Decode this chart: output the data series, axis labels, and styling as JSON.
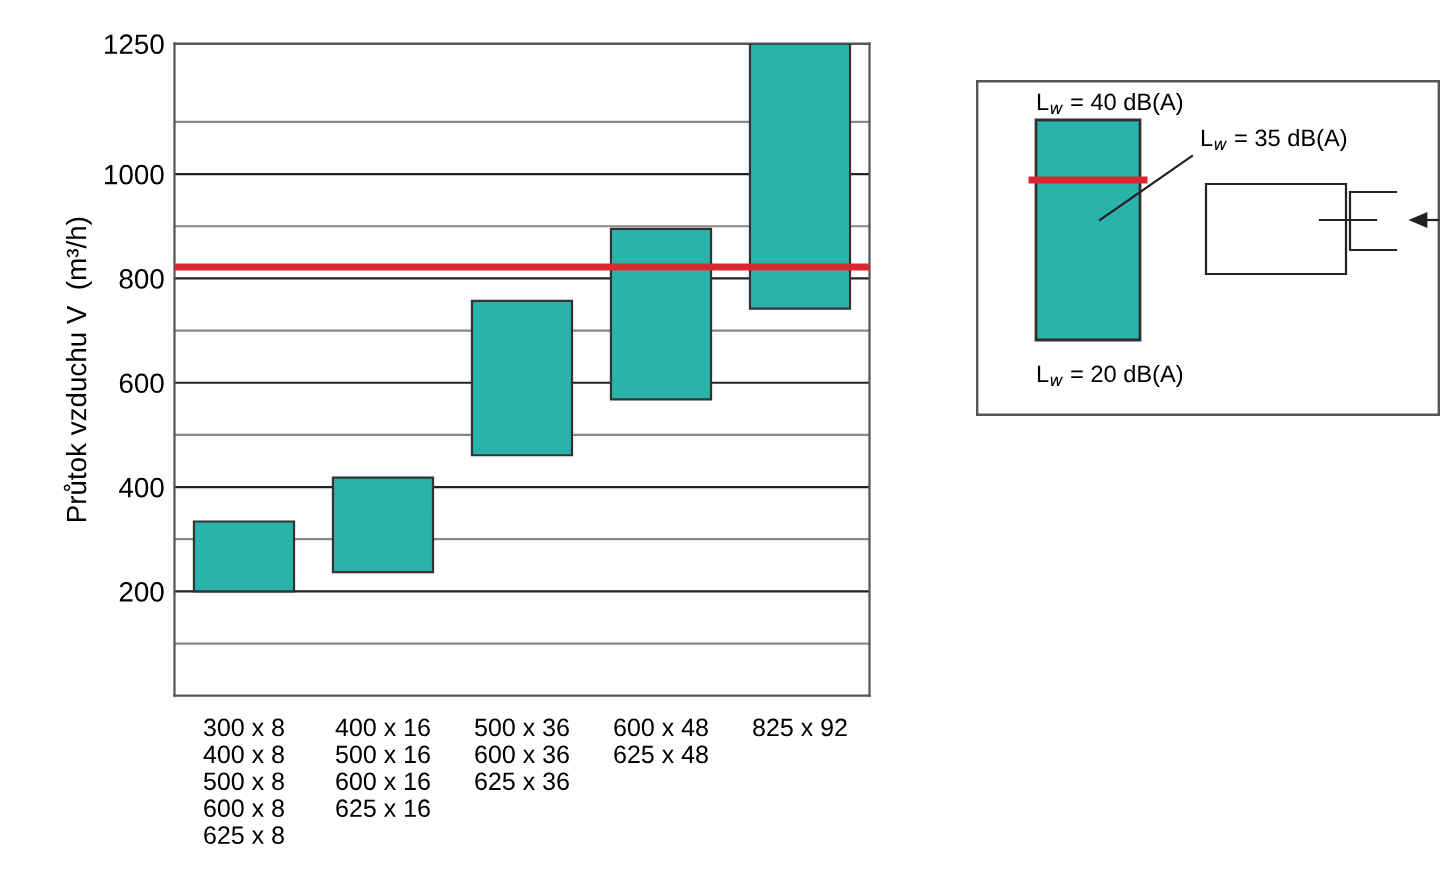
{
  "chart_data": {
    "type": "bar",
    "ylabel": "Průtok vzduchu V  (m³/h)",
    "categories": [
      "300 x 8\n400 x 8\n500 x 8\n600 x 8\n625 x 8",
      "400 x 16\n500 x 16\n600 x 16\n625 x 16",
      "500 x 36\n600 x 36\n625 x 36",
      "600 x 48\n625 x 48",
      "825 x 92"
    ],
    "base": [
      200,
      237,
      461,
      568,
      742
    ],
    "values": [
      134,
      181,
      296,
      327,
      508
    ],
    "color": "#2ab3ab",
    "ylim": [
      0,
      1250
    ],
    "yticks": [
      {
        "value": 100,
        "label": null
      },
      200,
      {
        "value": 300,
        "label": null
      },
      400,
      {
        "value": 500,
        "label": null
      },
      600,
      {
        "value": 700,
        "label": null
      },
      800,
      {
        "value": 900,
        "label": null
      },
      1000,
      {
        "value": 1100,
        "label": null
      },
      1250
    ],
    "grid": "y",
    "ref_lines": [
      {
        "axis": "y",
        "value": 822,
        "label": null,
        "color": "#d9282f"
      }
    ],
    "annotations": [
      "L$_{w}$ = 40 dB(A)",
      "L$_{w}$ = 35 dB(A)",
      "L$_{w}$ = 20 dB(A)"
    ]
  }
}
